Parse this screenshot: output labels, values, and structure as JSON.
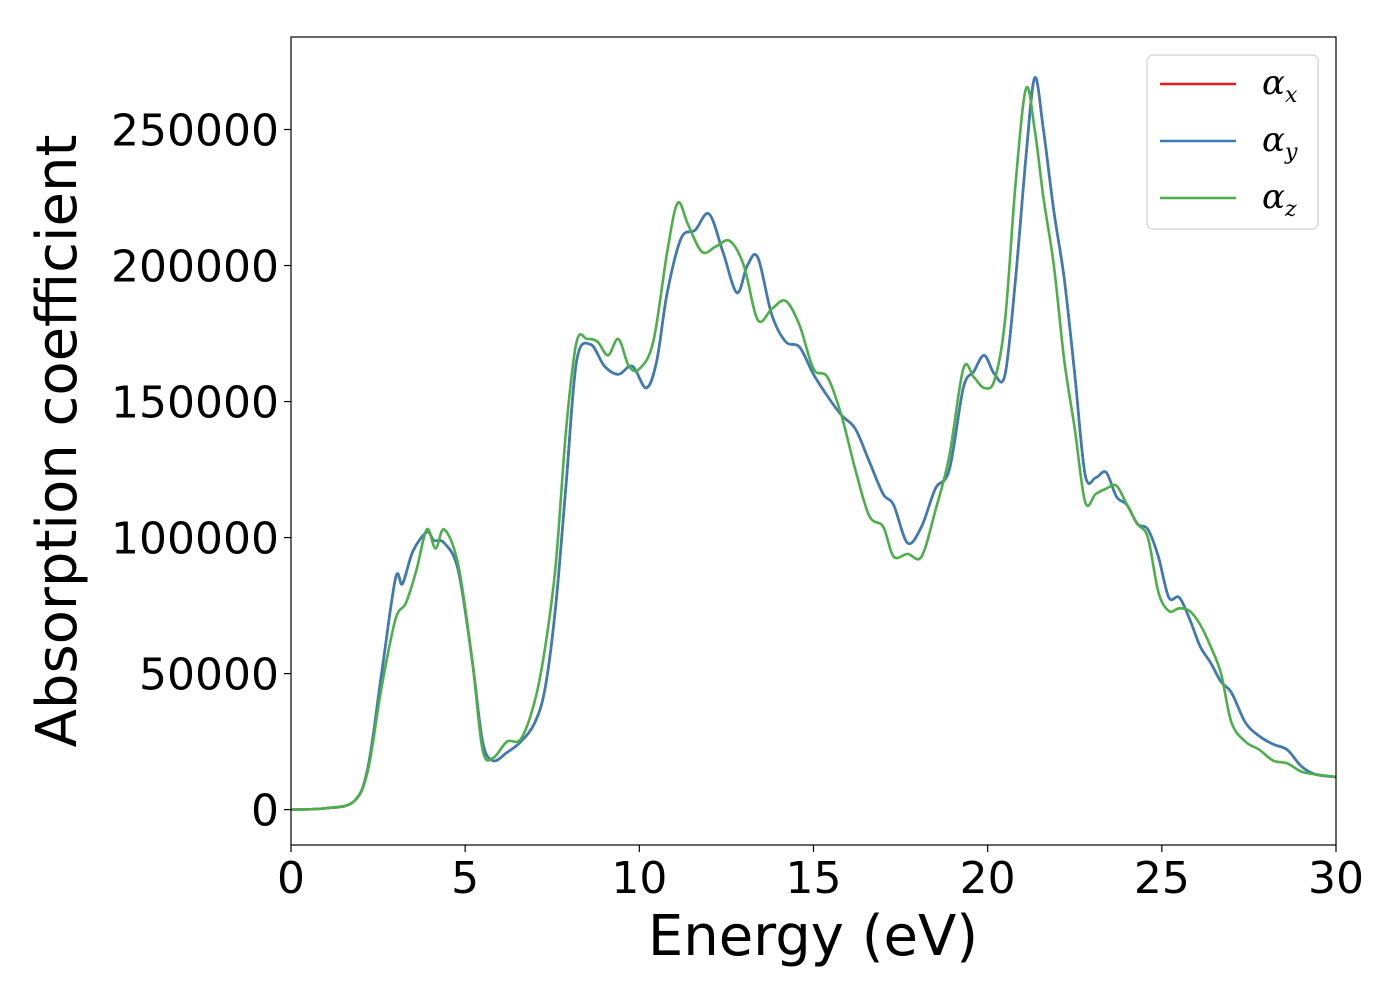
{
  "chart_data": {
    "type": "line",
    "xlabel": "Energy (eV)",
    "ylabel": "Absorption coefficient",
    "xlim": [
      0,
      30
    ],
    "ylim": [
      -13000,
      284000
    ],
    "x_ticks": [
      0,
      5,
      10,
      15,
      20,
      25,
      30
    ],
    "y_ticks": [
      0,
      50000,
      100000,
      150000,
      200000,
      250000
    ],
    "grid": false,
    "legend_position": "top-right",
    "series": [
      {
        "name": "α_x",
        "color": "#e41a1c",
        "x": [
          0,
          1,
          1.8,
          2.2,
          2.6,
          3.0,
          3.2,
          3.5,
          3.9,
          4.1,
          4.4,
          4.8,
          5.2,
          5.5,
          5.8,
          6.2,
          6.6,
          7.0,
          7.3,
          7.6,
          7.9,
          8.2,
          8.6,
          9.0,
          9.4,
          9.8,
          10.2,
          10.5,
          10.8,
          11.2,
          11.6,
          12.0,
          12.4,
          12.8,
          13.1,
          13.4,
          13.8,
          14.2,
          14.6,
          15.0,
          15.4,
          15.8,
          16.2,
          16.6,
          17.0,
          17.3,
          17.7,
          18.1,
          18.5,
          18.9,
          19.3,
          19.6,
          19.9,
          20.2,
          20.5,
          20.8,
          21.1,
          21.35,
          21.6,
          21.9,
          22.2,
          22.5,
          22.8,
          23.1,
          23.4,
          23.7,
          24.0,
          24.3,
          24.6,
          24.9,
          25.2,
          25.5,
          25.8,
          26.1,
          26.4,
          26.7,
          27.0,
          27.4,
          27.8,
          28.2,
          28.6,
          29.0,
          29.4,
          30.0
        ],
        "values": [
          0,
          500,
          3000,
          15000,
          50000,
          85000,
          83000,
          95000,
          102000,
          99000,
          98000,
          88000,
          55000,
          25000,
          18000,
          21000,
          25000,
          32000,
          45000,
          75000,
          120000,
          165000,
          171000,
          163000,
          160000,
          163000,
          155000,
          165000,
          190000,
          210000,
          213000,
          219000,
          205000,
          190000,
          200000,
          203000,
          182000,
          172000,
          170000,
          160000,
          152000,
          145000,
          140000,
          128000,
          116000,
          112000,
          98000,
          104000,
          118000,
          125000,
          155000,
          161000,
          167000,
          160000,
          160000,
          195000,
          240000,
          269000,
          250000,
          220000,
          195000,
          160000,
          123000,
          122000,
          124000,
          115000,
          112000,
          105000,
          103000,
          93000,
          78000,
          78000,
          70000,
          60000,
          54000,
          47000,
          43000,
          32000,
          27000,
          24000,
          22000,
          16000,
          13000,
          12000
        ]
      },
      {
        "name": "α_y",
        "color": "#377eb8",
        "x": [
          0,
          1,
          1.8,
          2.2,
          2.6,
          3.0,
          3.2,
          3.5,
          3.9,
          4.1,
          4.4,
          4.8,
          5.2,
          5.5,
          5.8,
          6.2,
          6.6,
          7.0,
          7.3,
          7.6,
          7.9,
          8.2,
          8.6,
          9.0,
          9.4,
          9.8,
          10.2,
          10.5,
          10.8,
          11.2,
          11.6,
          12.0,
          12.4,
          12.8,
          13.1,
          13.4,
          13.8,
          14.2,
          14.6,
          15.0,
          15.4,
          15.8,
          16.2,
          16.6,
          17.0,
          17.3,
          17.7,
          18.1,
          18.5,
          18.9,
          19.3,
          19.6,
          19.9,
          20.2,
          20.5,
          20.8,
          21.1,
          21.35,
          21.6,
          21.9,
          22.2,
          22.5,
          22.8,
          23.1,
          23.4,
          23.7,
          24.0,
          24.3,
          24.6,
          24.9,
          25.2,
          25.5,
          25.8,
          26.1,
          26.4,
          26.7,
          27.0,
          27.4,
          27.8,
          28.2,
          28.6,
          29.0,
          29.4,
          30.0
        ],
        "values": [
          0,
          500,
          3000,
          15000,
          50000,
          85000,
          83000,
          95000,
          102000,
          99000,
          98000,
          88000,
          55000,
          25000,
          18000,
          21000,
          25000,
          32000,
          45000,
          75000,
          120000,
          165000,
          171000,
          163000,
          160000,
          163000,
          155000,
          165000,
          190000,
          210000,
          213000,
          219000,
          205000,
          190000,
          200000,
          203000,
          182000,
          172000,
          170000,
          160000,
          152000,
          145000,
          140000,
          128000,
          116000,
          112000,
          98000,
          104000,
          118000,
          125000,
          155000,
          161000,
          167000,
          160000,
          160000,
          195000,
          240000,
          269000,
          250000,
          220000,
          195000,
          160000,
          123000,
          122000,
          124000,
          115000,
          112000,
          105000,
          103000,
          93000,
          78000,
          78000,
          70000,
          60000,
          54000,
          47000,
          43000,
          32000,
          27000,
          24000,
          22000,
          16000,
          13000,
          12000
        ]
      },
      {
        "name": "α_z",
        "color": "#4daf4a",
        "x": [
          0,
          1,
          1.8,
          2.2,
          2.6,
          3.0,
          3.3,
          3.6,
          3.9,
          4.15,
          4.4,
          4.8,
          5.2,
          5.5,
          5.8,
          6.2,
          6.6,
          7.0,
          7.3,
          7.6,
          7.9,
          8.2,
          8.5,
          8.8,
          9.1,
          9.4,
          9.7,
          10.0,
          10.4,
          10.8,
          11.1,
          11.4,
          11.8,
          12.2,
          12.6,
          13.0,
          13.4,
          13.8,
          14.2,
          14.6,
          15.0,
          15.4,
          15.8,
          16.2,
          16.6,
          17.0,
          17.3,
          17.7,
          18.1,
          18.5,
          18.9,
          19.3,
          19.6,
          19.9,
          20.2,
          20.5,
          20.8,
          21.1,
          21.35,
          21.6,
          21.9,
          22.2,
          22.5,
          22.8,
          23.1,
          23.4,
          23.7,
          24.0,
          24.3,
          24.6,
          24.9,
          25.2,
          25.5,
          25.8,
          26.1,
          26.4,
          26.7,
          27.0,
          27.4,
          27.8,
          28.2,
          28.6,
          29.0,
          29.4,
          30.0
        ],
        "values": [
          0,
          500,
          3000,
          14000,
          45000,
          70000,
          76000,
          88000,
          103000,
          96000,
          103000,
          90000,
          55000,
          22000,
          19000,
          25000,
          26000,
          40000,
          60000,
          90000,
          140000,
          172000,
          173000,
          172000,
          167000,
          173000,
          163000,
          162000,
          172000,
          205000,
          223000,
          215000,
          205000,
          207000,
          209000,
          200000,
          180000,
          184000,
          187000,
          178000,
          162000,
          159000,
          145000,
          125000,
          108000,
          104000,
          93000,
          94000,
          93000,
          110000,
          130000,
          162000,
          159000,
          155000,
          158000,
          180000,
          230000,
          265000,
          250000,
          225000,
          200000,
          165000,
          140000,
          113000,
          116000,
          118000,
          119000,
          112000,
          105000,
          100000,
          80000,
          73000,
          74000,
          73000,
          68000,
          60000,
          50000,
          32000,
          25000,
          22000,
          18000,
          17000,
          14000,
          13000,
          12000
        ]
      }
    ]
  }
}
